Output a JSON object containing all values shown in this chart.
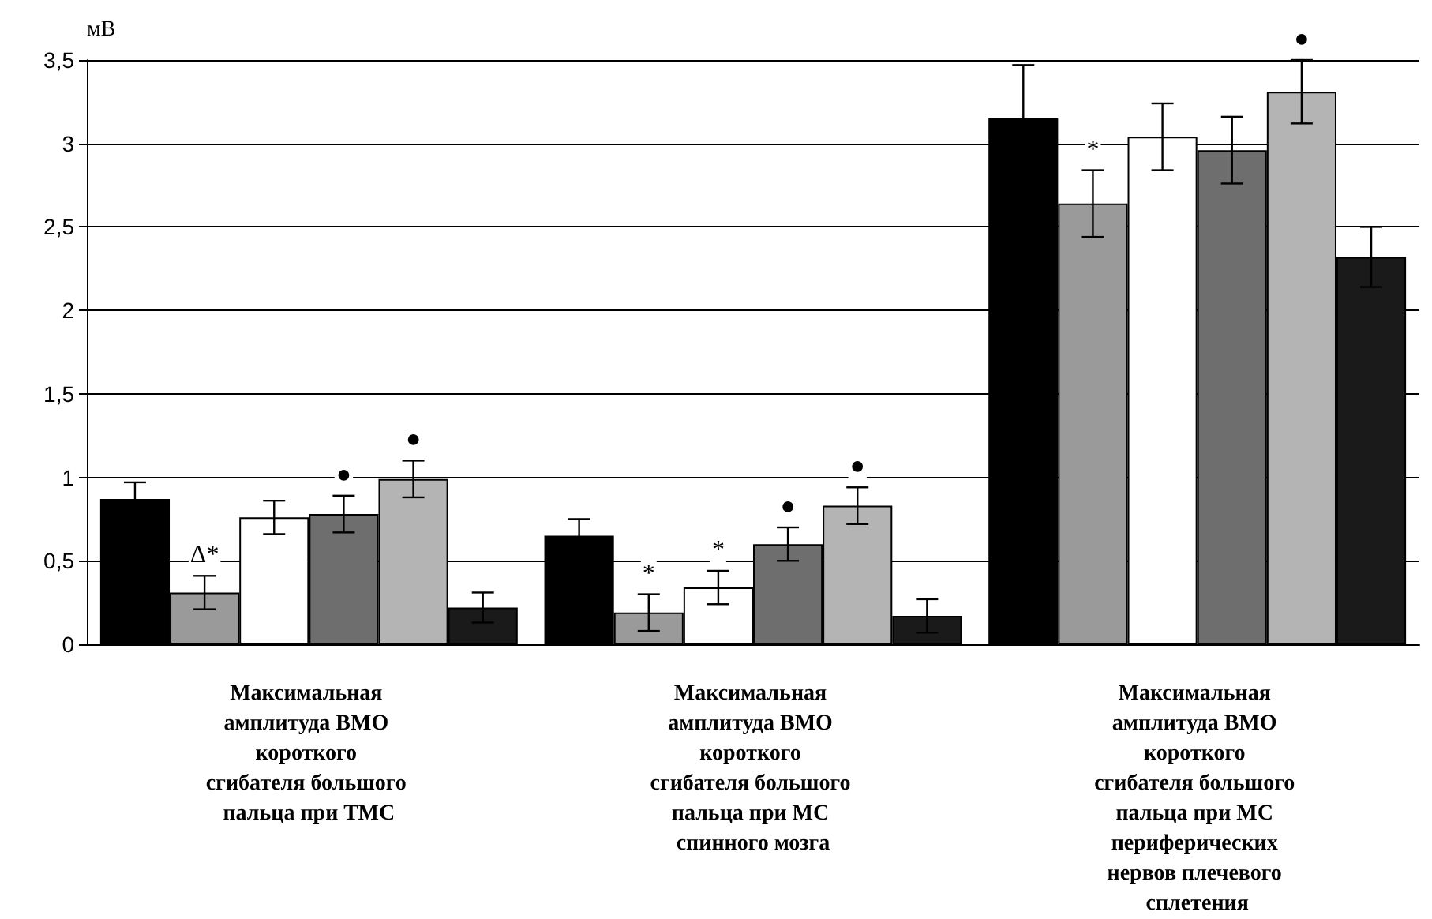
{
  "chart_data": {
    "type": "bar",
    "ylabel": "мВ",
    "categories": [
      "Максимальная амплитуда ВМО короткого сгибателя большого пальца при ТМС",
      "Максимальная амплитуда ВМО короткого сгибателя большого пальца при МС спинного мозга",
      "Максимальная амплитуда ВМО короткого сгибателя большого пальца при МС периферических нервов плечевого сплетения"
    ],
    "series": [
      {
        "color": "#000000",
        "values": [
          0.87,
          0.65,
          3.15
        ],
        "errors": [
          0.1,
          0.1,
          0.32
        ]
      },
      {
        "color": "#9a9a9a",
        "values": [
          0.31,
          0.19,
          2.64
        ],
        "errors": [
          0.1,
          0.11,
          0.2
        ],
        "value_labels": [
          "Δ*",
          "*",
          "*"
        ]
      },
      {
        "color": "#ffffff",
        "values": [
          0.76,
          0.34,
          3.04
        ],
        "errors": [
          0.1,
          0.1,
          0.2
        ],
        "value_labels": [
          null,
          "*",
          null
        ]
      },
      {
        "color": "#6e6e6e",
        "values": [
          0.78,
          0.6,
          2.96
        ],
        "errors": [
          0.11,
          0.1,
          0.2
        ],
        "value_labels": [
          "●",
          "●",
          null
        ]
      },
      {
        "color": "#b4b4b4",
        "values": [
          0.99,
          0.83,
          3.31
        ],
        "errors": [
          0.11,
          0.11,
          0.19
        ],
        "value_labels": [
          "●",
          "●",
          "●"
        ]
      },
      {
        "color": "#1a1a1a",
        "values": [
          0.22,
          0.17,
          2.32
        ],
        "errors": [
          0.09,
          0.1,
          0.18
        ]
      }
    ],
    "ylim": [
      0,
      3.5
    ],
    "yticks": [
      0,
      {
        "value": 0.5,
        "label": "0,5"
      },
      1,
      {
        "value": 1.5,
        "label": "1,5"
      },
      2,
      {
        "value": 2.5,
        "label": "2,5"
      },
      3,
      {
        "value": 3.5,
        "label": "3,5"
      }
    ],
    "grid": "y"
  }
}
